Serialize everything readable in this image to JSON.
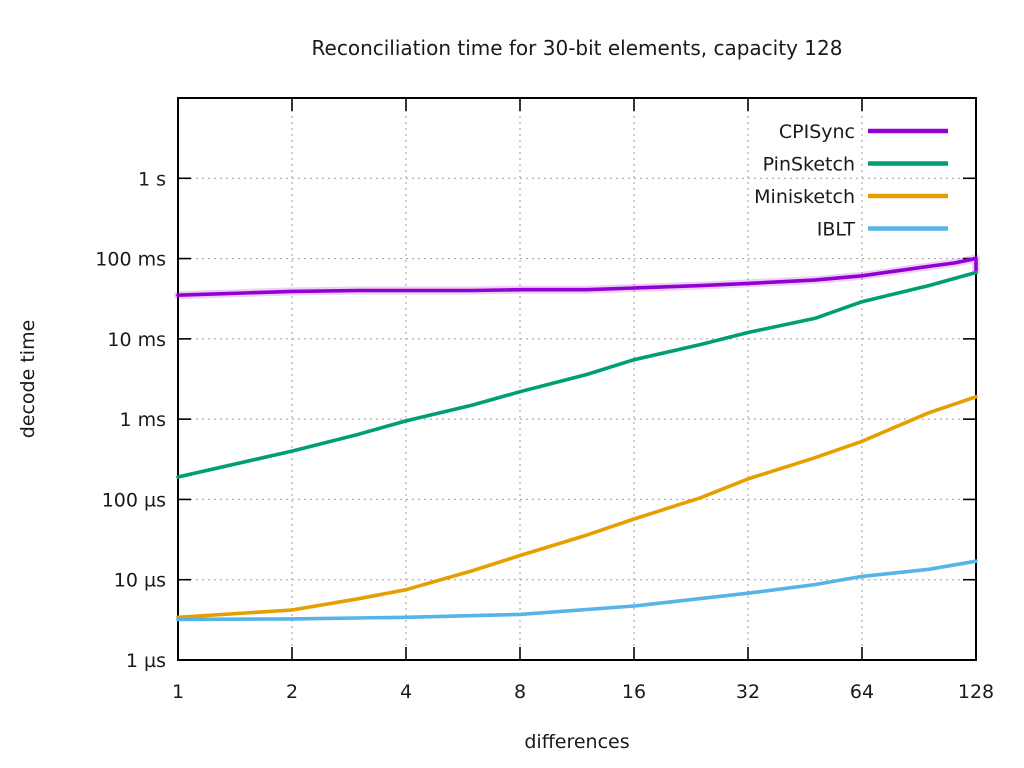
{
  "chart_data": {
    "type": "line",
    "title": "Reconciliation time for 30-bit elements, capacity 128",
    "xlabel": "differences",
    "ylabel": "decode time",
    "x_scale": "log2",
    "y_scale": "log10",
    "xlim": [
      1,
      128
    ],
    "ylim_seconds": [
      1e-06,
      10
    ],
    "grid": true,
    "legend_position": "top-right-inside",
    "colors": {
      "foreground": "#000000",
      "grid": "#9e9e9e",
      "background": "#ffffff"
    },
    "x_ticks": [
      {
        "v": 1,
        "label": "1"
      },
      {
        "v": 2,
        "label": "2"
      },
      {
        "v": 4,
        "label": "4"
      },
      {
        "v": 8,
        "label": "8"
      },
      {
        "v": 16,
        "label": "16"
      },
      {
        "v": 32,
        "label": "32"
      },
      {
        "v": 64,
        "label": "64"
      },
      {
        "v": 128,
        "label": "128"
      }
    ],
    "y_ticks": [
      {
        "v": 1e-06,
        "label": "1 µs"
      },
      {
        "v": 1e-05,
        "label": "10 µs"
      },
      {
        "v": 0.0001,
        "label": "100 µs"
      },
      {
        "v": 0.001,
        "label": "1 ms"
      },
      {
        "v": 0.01,
        "label": "10 ms"
      },
      {
        "v": 0.1,
        "label": "100 ms"
      },
      {
        "v": 1,
        "label": "1 s"
      }
    ],
    "series": [
      {
        "name": "CPISync",
        "color": "#9400d3",
        "halo": true,
        "x": [
          1,
          2,
          3,
          4,
          6,
          8,
          12,
          16,
          24,
          32,
          48,
          64,
          96,
          112,
          124,
          128,
          128
        ],
        "y_seconds": [
          0.035,
          0.039,
          0.04,
          0.04,
          0.04,
          0.041,
          0.041,
          0.043,
          0.046,
          0.049,
          0.054,
          0.061,
          0.08,
          0.088,
          0.097,
          0.101,
          0.07
        ]
      },
      {
        "name": "PinSketch",
        "color": "#009e73",
        "halo": false,
        "x": [
          1,
          2,
          3,
          4,
          6,
          8,
          12,
          16,
          24,
          32,
          48,
          64,
          96,
          128
        ],
        "y_seconds": [
          0.00019,
          0.0004,
          0.00065,
          0.00095,
          0.0015,
          0.0022,
          0.0036,
          0.0055,
          0.0085,
          0.012,
          0.018,
          0.029,
          0.046,
          0.067
        ]
      },
      {
        "name": "Minisketch",
        "color": "#e69f00",
        "halo": false,
        "x": [
          1,
          2,
          3,
          4,
          6,
          8,
          12,
          16,
          24,
          32,
          48,
          64,
          96,
          128
        ],
        "y_seconds": [
          3.4e-06,
          4.2e-06,
          5.8e-06,
          7.5e-06,
          1.3e-05,
          2e-05,
          3.6e-05,
          5.7e-05,
          0.000105,
          0.00018,
          0.00033,
          0.00053,
          0.0012,
          0.0019
        ]
      },
      {
        "name": "IBLT",
        "color": "#56b4e9",
        "halo": false,
        "x": [
          1,
          2,
          4,
          8,
          16,
          32,
          48,
          64,
          96,
          128
        ],
        "y_seconds": [
          3.2e-06,
          3.25e-06,
          3.4e-06,
          3.7e-06,
          4.7e-06,
          6.8e-06,
          8.7e-06,
          1.1e-05,
          1.35e-05,
          1.7e-05
        ]
      }
    ]
  }
}
